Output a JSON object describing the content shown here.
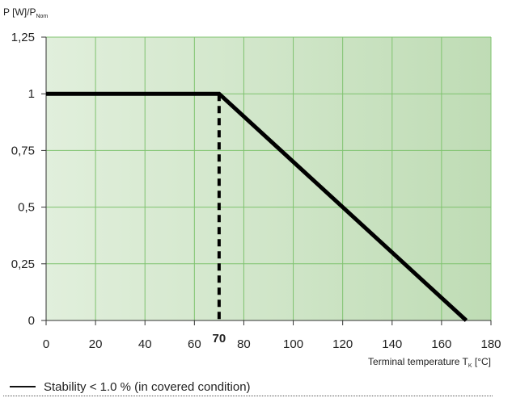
{
  "chart_data": {
    "type": "line",
    "y_axis_label": {
      "main": "P [W]/P",
      "sub": "Nom"
    },
    "x_axis_label": {
      "main": "Terminal temperature  T",
      "sub": "K",
      "unit": " [°C]"
    },
    "xlim": [
      0,
      180
    ],
    "ylim": [
      0,
      1.25
    ],
    "x_ticks": [
      "0",
      "20",
      "40",
      "60",
      "80",
      "100",
      "120",
      "140",
      "160",
      "180"
    ],
    "y_ticks": [
      "0",
      "0,25",
      "0,5",
      "0,75",
      "1",
      "1,25"
    ],
    "grid": true,
    "series": [
      {
        "name": "Stability < 1.0 % (in covered condition)",
        "x": [
          0,
          70,
          170
        ],
        "y": [
          1,
          1,
          0
        ]
      }
    ],
    "annotations": [
      {
        "text": "70",
        "x": 70,
        "style": "dashed-drop-line"
      }
    ]
  },
  "legend": {
    "label": "Stability < 1.0 % (in covered condition)"
  },
  "colors": {
    "plot_bg_left": "#e1efdc",
    "plot_bg_right": "#bfdcb5",
    "grid": "#7fc36f",
    "line": "#000000"
  }
}
